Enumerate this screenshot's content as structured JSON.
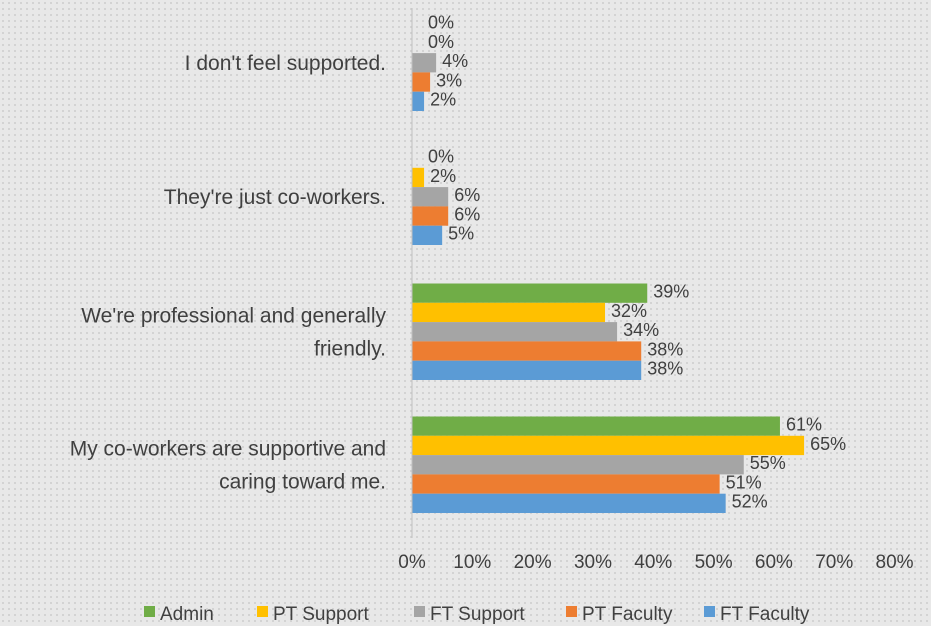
{
  "chart_data": {
    "type": "bar",
    "orientation": "horizontal",
    "categories": [
      [
        "My co-workers are supportive and",
        "caring toward me."
      ],
      [
        "We're professional and generally",
        "friendly."
      ],
      [
        "They're just co-workers."
      ],
      [
        "I don't feel supported."
      ]
    ],
    "series": [
      {
        "name": "Admin",
        "color": "#70ad47",
        "values": [
          61,
          39,
          0,
          0
        ]
      },
      {
        "name": "PT Support",
        "color": "#ffc000",
        "values": [
          65,
          32,
          2,
          0
        ]
      },
      {
        "name": "FT Support",
        "color": "#a5a5a5",
        "values": [
          55,
          34,
          6,
          4
        ]
      },
      {
        "name": "PT Faculty",
        "color": "#ed7d31",
        "values": [
          51,
          38,
          6,
          3
        ]
      },
      {
        "name": "FT Faculty",
        "color": "#5b9bd5",
        "values": [
          52,
          38,
          5,
          2
        ]
      }
    ],
    "x_ticks": [
      "0%",
      "10%",
      "20%",
      "30%",
      "40%",
      "50%",
      "60%",
      "70%",
      "80%"
    ],
    "xlim": [
      0,
      80
    ],
    "value_suffix": "%",
    "grid": false,
    "legend_position": "bottom"
  }
}
